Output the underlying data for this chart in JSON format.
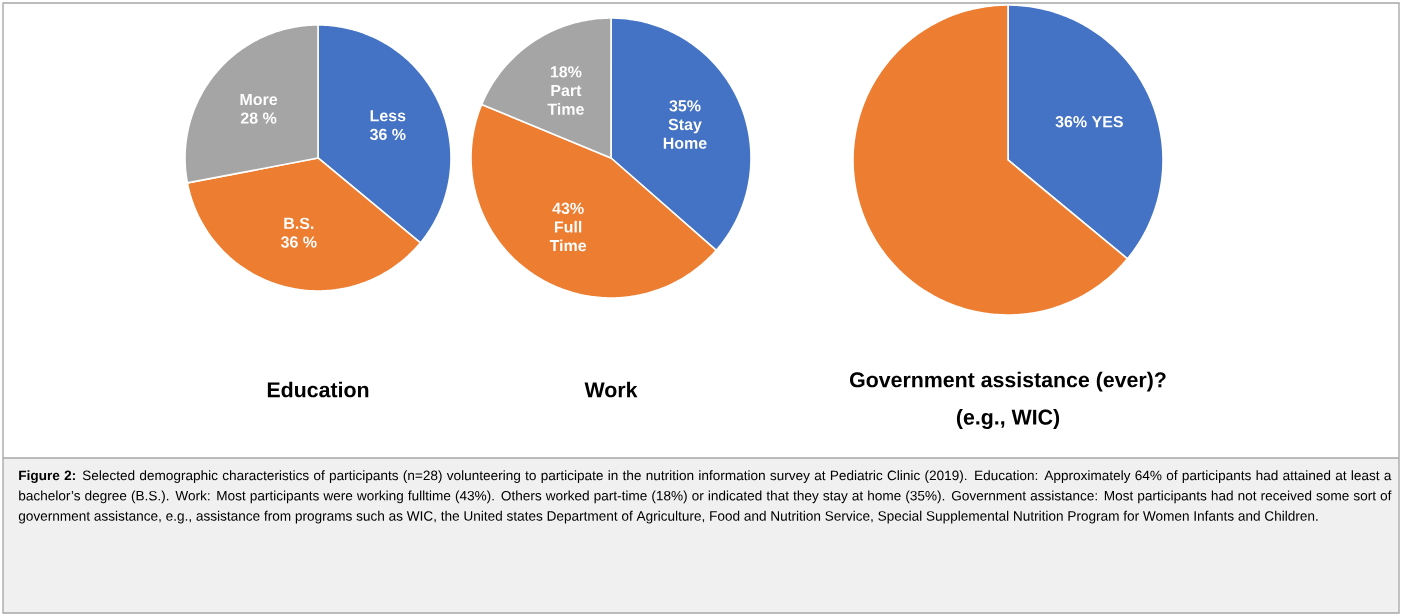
{
  "chart_data": [
    {
      "type": "pie",
      "title": "Education",
      "categories": [
        "Less",
        "B.S.",
        "More"
      ],
      "values": [
        36,
        36,
        28
      ],
      "colors": [
        "#4472c4",
        "#ed7d31",
        "#a5a5a5"
      ],
      "value_labels": [
        "36 %",
        "36 %",
        "28 %"
      ]
    },
    {
      "type": "pie",
      "title": "Work",
      "categories": [
        "Stay Home",
        "Full Time",
        "Part Time"
      ],
      "values": [
        35,
        43,
        18
      ],
      "colors": [
        "#4472c4",
        "#ed7d31",
        "#a5a5a5"
      ],
      "value_labels": [
        "35%",
        "43%",
        "18%"
      ]
    },
    {
      "type": "pie",
      "title": "Government assistance (ever)?",
      "subtitle": "(e.g., WIC)",
      "categories": [
        "YES",
        null
      ],
      "values": [
        36,
        64
      ],
      "colors": [
        "#4472c4",
        "#ed7d31"
      ],
      "value_labels": [
        "36%",
        null
      ],
      "annotations": [
        "**Figure 2:** Selected demographic characteristics of participants (n=28) volunteering to participate in the nutrition information survey at Pediatric Clinic (2019). Education: Approximately 64% of participants had attained at least a bachelor’s degree (B.S.). Work: Most participants were working fulltime (43%). Others worked part-time (18%) or indicated that they stay at home (35%). Government assistance: Most participants had not received some sort of government assistance, e.g., assistance from programs such as WIC, the United states Department of Agriculture, Food and Nutrition Service, Special Supplemental Nutrition Program for Women Infants and Children."
      ]
    }
  ]
}
